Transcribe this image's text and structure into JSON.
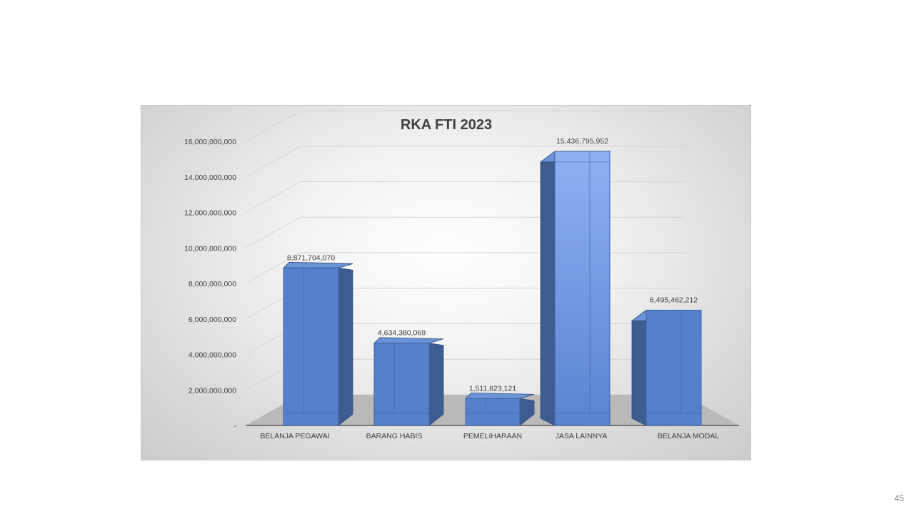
{
  "chart_data": {
    "type": "bar",
    "title": "RKA FTI 2023",
    "categories": [
      "BELANJA PEGAWAI",
      "BARANG HABIS",
      "PEMELIHARAAN",
      "JASA LAINNYA",
      "BELANJA MODAL"
    ],
    "values": [
      8871704070,
      4634380069,
      1511823121,
      15436795952,
      6495462212
    ],
    "value_labels": [
      "8,871,704,070",
      "4,634,380,069",
      "1,511,823,121",
      "15,436,795,952",
      "6,495,462,212"
    ],
    "y_ticks": [
      {
        "value": 0,
        "label": "-"
      },
      {
        "value": 2000000000,
        "label": "2,000,000,000"
      },
      {
        "value": 4000000000,
        "label": "4,000,000,000"
      },
      {
        "value": 6000000000,
        "label": "6,000,000,000"
      },
      {
        "value": 8000000000,
        "label": "8,000,000,000"
      },
      {
        "value": 10000000000,
        "label": "10,000,000,000"
      },
      {
        "value": 12000000000,
        "label": "12,000,000,000"
      },
      {
        "value": 14000000000,
        "label": "14,000,000,000"
      },
      {
        "value": 16000000000,
        "label": "16,000,000,000"
      }
    ],
    "ylim": [
      0,
      16000000000
    ],
    "xlabel": "",
    "ylabel": "",
    "grid": true,
    "style": "3d-column",
    "colors": {
      "bar_front": "#5580cc",
      "bar_front_highlight": "#8fb0f2",
      "bar_side": "#3c5c92",
      "bar_top": "#6b93d8",
      "floor": "#b9b9b9",
      "grid": "#d4d4d4"
    }
  },
  "page_number": "45"
}
